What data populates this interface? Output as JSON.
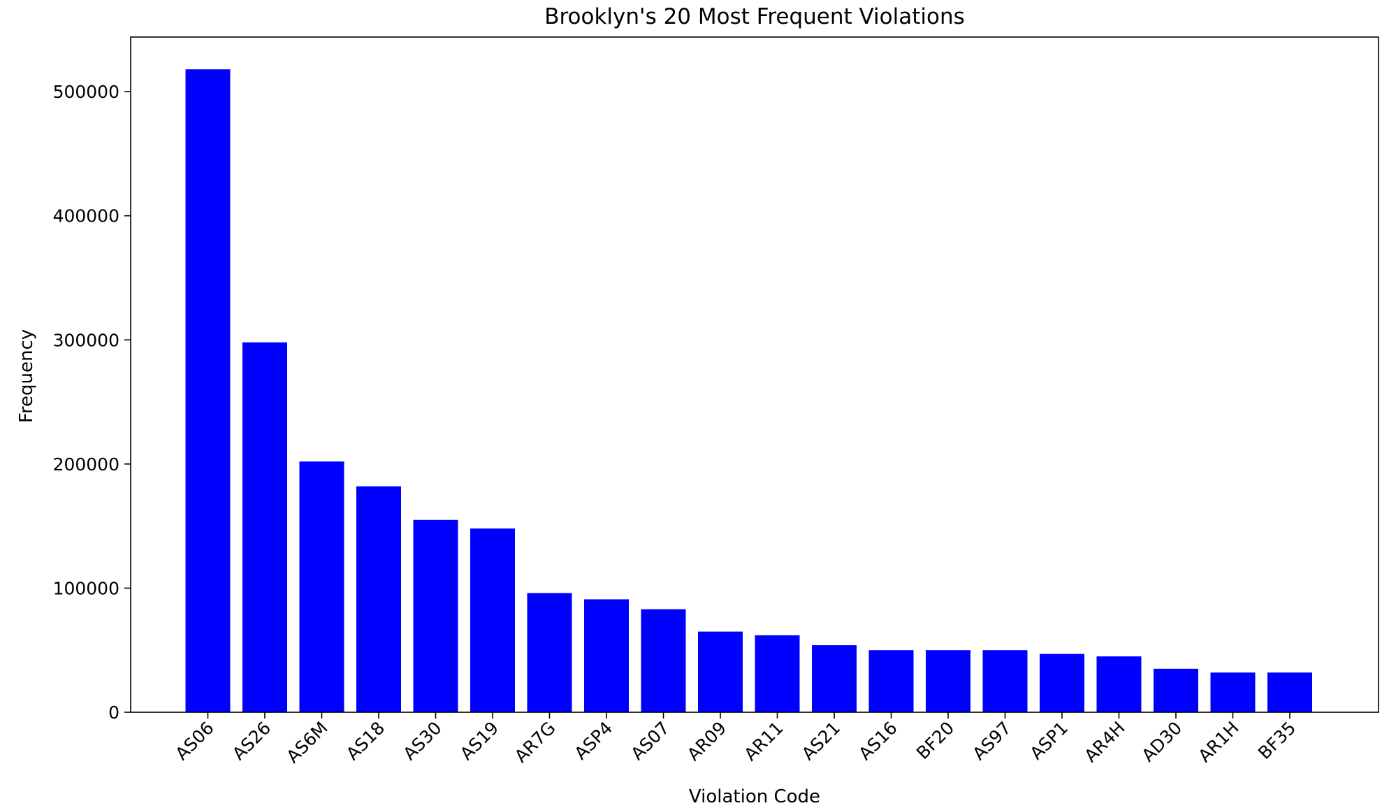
{
  "chart_data": {
    "type": "bar",
    "title": "Brooklyn's 20 Most Frequent Violations",
    "xlabel": "Violation Code",
    "ylabel": "Frequency",
    "categories": [
      "AS06",
      "AS26",
      "AS6M",
      "AS18",
      "AS30",
      "AS19",
      "AR7G",
      "ASP4",
      "AS07",
      "AR09",
      "AR11",
      "AS21",
      "AS16",
      "BF20",
      "AS97",
      "ASP1",
      "AR4H",
      "AD30",
      "AR1H",
      "BF35"
    ],
    "values": [
      518000,
      298000,
      202000,
      182000,
      155000,
      148000,
      96000,
      91000,
      83000,
      65000,
      62000,
      54000,
      50000,
      50000,
      50000,
      47000,
      45000,
      35000,
      32000,
      32000
    ],
    "ylim": [
      0,
      544000
    ],
    "yticks": [
      0,
      100000,
      200000,
      300000,
      400000,
      500000
    ],
    "bar_color": "#0000ff",
    "grid": false,
    "legend": false
  }
}
